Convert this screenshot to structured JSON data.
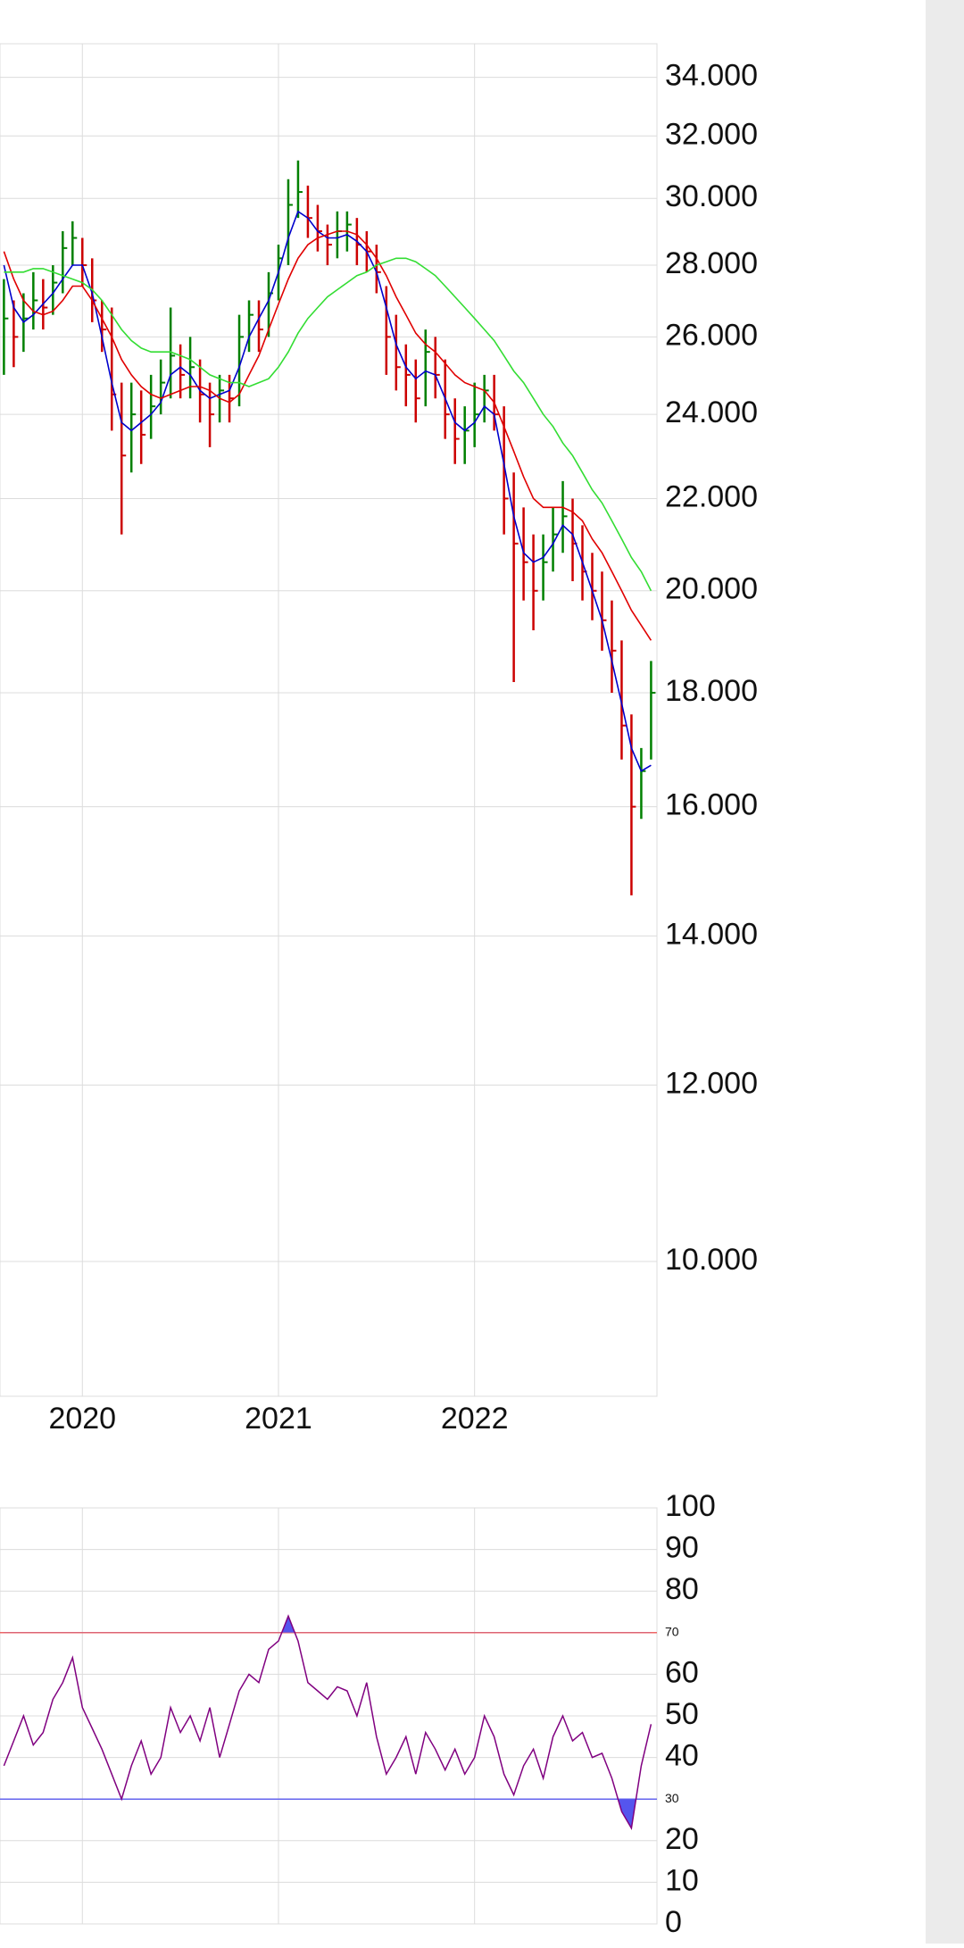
{
  "chart_data": [
    {
      "type": "stock",
      "log_scale": true,
      "grid": true,
      "up_color": "#008000",
      "down_color": "#cc0000",
      "xlim": [
        2019.58,
        2022.93
      ],
      "xticks": [
        2020,
        2021,
        2022
      ],
      "ylim": [
        8.7,
        35.2
      ],
      "yticks": [
        {
          "value": 34,
          "label": "34.000"
        },
        {
          "value": 32,
          "label": "32.000"
        },
        {
          "value": 30,
          "label": "30.000"
        },
        {
          "value": 28,
          "label": "28.000"
        },
        {
          "value": 26,
          "label": "26.000"
        },
        {
          "value": 24,
          "label": "24.000"
        },
        {
          "value": 22,
          "label": "22.000"
        },
        {
          "value": 20,
          "label": "20.000"
        },
        {
          "value": 18,
          "label": "18.000"
        },
        {
          "value": 16,
          "label": "16.000"
        },
        {
          "value": 14,
          "label": "14.000"
        },
        {
          "value": 12,
          "label": "12.000"
        },
        {
          "value": 10,
          "label": "10.000"
        }
      ],
      "x": [
        2019.6,
        2019.65,
        2019.7,
        2019.75,
        2019.8,
        2019.85,
        2019.9,
        2019.95,
        2020.0,
        2020.05,
        2020.1,
        2020.15,
        2020.2,
        2020.25,
        2020.3,
        2020.35,
        2020.4,
        2020.45,
        2020.5,
        2020.55,
        2020.6,
        2020.65,
        2020.7,
        2020.75,
        2020.8,
        2020.85,
        2020.9,
        2020.95,
        2021.0,
        2021.05,
        2021.1,
        2021.15,
        2021.2,
        2021.25,
        2021.3,
        2021.35,
        2021.4,
        2021.45,
        2021.5,
        2021.55,
        2021.6,
        2021.65,
        2021.7,
        2021.75,
        2021.8,
        2021.85,
        2021.9,
        2021.95,
        2022.0,
        2022.05,
        2022.1,
        2022.15,
        2022.2,
        2022.25,
        2022.3,
        2022.35,
        2022.4,
        2022.45,
        2022.5,
        2022.55,
        2022.6,
        2022.65,
        2022.7,
        2022.75,
        2022.8,
        2022.85,
        2022.9
      ],
      "high": [
        27.6,
        27.0,
        27.2,
        27.8,
        27.6,
        28.0,
        29.0,
        29.3,
        28.8,
        28.2,
        27.0,
        26.8,
        24.8,
        24.8,
        24.6,
        25.0,
        25.4,
        26.8,
        25.8,
        26.0,
        25.4,
        24.8,
        25.0,
        25.0,
        26.6,
        27.0,
        27.0,
        27.8,
        28.6,
        30.6,
        31.2,
        30.4,
        29.8,
        29.2,
        29.6,
        29.6,
        29.4,
        29.0,
        28.6,
        27.4,
        26.6,
        25.8,
        25.4,
        26.2,
        26.0,
        25.4,
        24.4,
        24.2,
        24.8,
        25.0,
        25.0,
        24.2,
        22.6,
        21.8,
        21.2,
        21.2,
        21.8,
        22.4,
        22.0,
        21.4,
        20.8,
        20.4,
        19.8,
        19.0,
        17.6,
        17.0,
        18.6
      ],
      "low": [
        25.0,
        25.2,
        25.6,
        26.2,
        26.2,
        26.6,
        27.2,
        28.0,
        27.4,
        26.4,
        25.6,
        23.6,
        21.2,
        22.6,
        22.8,
        23.4,
        24.0,
        24.4,
        24.4,
        24.4,
        23.8,
        23.2,
        23.8,
        23.8,
        24.2,
        25.6,
        25.6,
        26.0,
        27.0,
        28.0,
        29.4,
        28.8,
        28.4,
        28.0,
        28.2,
        28.4,
        28.0,
        27.8,
        27.2,
        25.0,
        24.6,
        24.2,
        23.8,
        24.2,
        24.4,
        23.4,
        22.8,
        22.8,
        23.2,
        23.8,
        23.6,
        21.2,
        18.2,
        19.8,
        19.2,
        19.8,
        20.4,
        20.8,
        20.2,
        19.8,
        19.4,
        18.8,
        18.0,
        16.8,
        14.6,
        15.8,
        16.8
      ],
      "close": [
        26.5,
        26.0,
        26.5,
        27.0,
        26.8,
        27.5,
        28.5,
        28.8,
        28.0,
        27.0,
        26.2,
        24.5,
        23.0,
        24.0,
        23.5,
        24.2,
        24.8,
        25.5,
        25.0,
        25.2,
        24.5,
        24.0,
        24.6,
        24.4,
        26.0,
        26.6,
        26.2,
        27.2,
        28.2,
        29.8,
        30.2,
        29.4,
        29.0,
        28.6,
        29.0,
        29.2,
        28.6,
        28.4,
        27.8,
        26.0,
        25.2,
        25.0,
        24.4,
        25.6,
        25.0,
        24.0,
        23.4,
        23.6,
        24.0,
        24.6,
        24.0,
        22.0,
        21.0,
        20.6,
        20.0,
        20.6,
        21.2,
        21.6,
        21.0,
        20.4,
        20.0,
        19.4,
        18.8,
        17.4,
        16.0,
        16.6,
        18.0
      ],
      "series": [
        {
          "color": "#0000cc",
          "values": [
            28.0,
            26.8,
            26.4,
            26.6,
            26.9,
            27.2,
            27.6,
            28.0,
            28.0,
            27.2,
            26.0,
            24.8,
            23.8,
            23.6,
            23.8,
            24.0,
            24.3,
            25.0,
            25.2,
            25.0,
            24.6,
            24.4,
            24.5,
            24.6,
            25.2,
            26.0,
            26.5,
            27.0,
            27.8,
            28.8,
            29.6,
            29.4,
            29.0,
            28.8,
            28.8,
            28.9,
            28.7,
            28.4,
            27.8,
            26.8,
            25.8,
            25.2,
            24.9,
            25.1,
            25.0,
            24.4,
            23.8,
            23.6,
            23.8,
            24.2,
            24.0,
            22.8,
            21.6,
            20.8,
            20.6,
            20.7,
            21.0,
            21.4,
            21.2,
            20.6,
            20.0,
            19.4,
            18.6,
            17.8,
            17.0,
            16.6,
            16.7
          ]
        },
        {
          "color": "#e00000",
          "values": [
            28.4,
            27.6,
            27.0,
            26.7,
            26.6,
            26.7,
            27.0,
            27.4,
            27.4,
            27.0,
            26.5,
            26.0,
            25.4,
            25.0,
            24.7,
            24.5,
            24.4,
            24.5,
            24.6,
            24.7,
            24.7,
            24.6,
            24.4,
            24.3,
            24.5,
            25.0,
            25.5,
            26.2,
            26.9,
            27.6,
            28.2,
            28.6,
            28.8,
            28.9,
            29.0,
            29.0,
            28.9,
            28.6,
            28.2,
            27.7,
            27.1,
            26.6,
            26.1,
            25.8,
            25.6,
            25.3,
            25.0,
            24.8,
            24.7,
            24.6,
            24.3,
            23.7,
            23.1,
            22.5,
            22.0,
            21.8,
            21.8,
            21.8,
            21.7,
            21.5,
            21.1,
            20.8,
            20.4,
            20.0,
            19.6,
            19.3,
            19.0
          ]
        },
        {
          "color": "#33dd33",
          "values": [
            27.8,
            27.8,
            27.8,
            27.9,
            27.9,
            27.8,
            27.7,
            27.6,
            27.5,
            27.3,
            27.0,
            26.6,
            26.2,
            25.9,
            25.7,
            25.6,
            25.6,
            25.6,
            25.5,
            25.4,
            25.2,
            25.0,
            24.9,
            24.8,
            24.8,
            24.7,
            24.8,
            24.9,
            25.2,
            25.6,
            26.1,
            26.5,
            26.8,
            27.1,
            27.3,
            27.5,
            27.7,
            27.8,
            28.0,
            28.1,
            28.2,
            28.2,
            28.1,
            27.9,
            27.7,
            27.4,
            27.1,
            26.8,
            26.5,
            26.2,
            25.9,
            25.5,
            25.1,
            24.8,
            24.4,
            24.0,
            23.7,
            23.3,
            23.0,
            22.6,
            22.2,
            21.9,
            21.5,
            21.1,
            20.7,
            20.4,
            20.0
          ]
        }
      ]
    },
    {
      "type": "line",
      "color": "#800080",
      "fill_color": "#5555ee",
      "grid": true,
      "ylim": [
        0,
        100
      ],
      "yticks": [
        100,
        90,
        80,
        60,
        50,
        40,
        20,
        10,
        0
      ],
      "levels": [
        {
          "value": 70,
          "color": "#ee6666"
        },
        {
          "value": 30,
          "color": "#6666ee"
        }
      ],
      "values": [
        38,
        44,
        50,
        43,
        46,
        54,
        58,
        64,
        52,
        47,
        42,
        36,
        30,
        38,
        44,
        36,
        40,
        52,
        46,
        50,
        44,
        52,
        40,
        48,
        56,
        60,
        58,
        66,
        68,
        74,
        68,
        58,
        56,
        54,
        57,
        56,
        50,
        58,
        45,
        36,
        40,
        45,
        36,
        46,
        42,
        37,
        42,
        36,
        40,
        50,
        45,
        36,
        31,
        38,
        42,
        35,
        45,
        50,
        44,
        46,
        40,
        41,
        35,
        27,
        23,
        38,
        48
      ]
    }
  ]
}
